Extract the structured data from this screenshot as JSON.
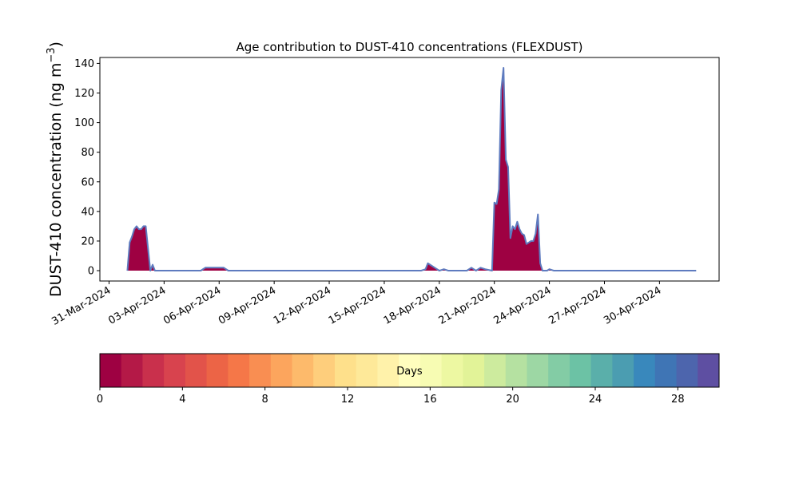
{
  "chart_data": {
    "type": "area",
    "title": "Age contribution to DUST-410 concentrations (FLEXDUST)",
    "xlabel": "",
    "ylabel_main": "DUST-410 concentration (ng m",
    "ylabel_sup": "−3",
    "ylabel_close": ")",
    "ylim": [
      -7,
      144
    ],
    "yticks": [
      0,
      20,
      40,
      60,
      80,
      100,
      120,
      140
    ],
    "xlim": [
      "2024-03-30T12:00",
      "2024-05-03T06:00"
    ],
    "xticks": [
      "2024-03-31",
      "2024-04-03",
      "2024-04-06",
      "2024-04-09",
      "2024-04-12",
      "2024-04-15",
      "2024-04-18",
      "2024-04-21",
      "2024-04-24",
      "2024-04-27",
      "2024-04-30"
    ],
    "xtick_labels": [
      "31-Mar-2024",
      "03-Apr-2024",
      "06-Apr-2024",
      "09-Apr-2024",
      "12-Apr-2024",
      "15-Apr-2024",
      "18-Apr-2024",
      "21-Apr-2024",
      "24-Apr-2024",
      "27-Apr-2024",
      "30-Apr-2024"
    ],
    "series": [
      {
        "fill_color": "#9e0142",
        "line_color": "#5e7bbf",
        "x": [
          "2024-04-01T00:00",
          "2024-04-01T03:00",
          "2024-04-01T06:00",
          "2024-04-01T09:00",
          "2024-04-01T12:00",
          "2024-04-01T15:00",
          "2024-04-01T18:00",
          "2024-04-01T21:00",
          "2024-04-02T00:00",
          "2024-04-02T03:00",
          "2024-04-02T06:00",
          "2024-04-02T09:00",
          "2024-04-02T12:00",
          "2024-04-03T00:00",
          "2024-04-05T00:00",
          "2024-04-05T06:00",
          "2024-04-05T12:00",
          "2024-04-06T00:00",
          "2024-04-06T06:00",
          "2024-04-06T12:00",
          "2024-04-07T00:00",
          "2024-04-17T00:00",
          "2024-04-17T06:00",
          "2024-04-17T09:00",
          "2024-04-17T12:00",
          "2024-04-17T18:00",
          "2024-04-18T00:00",
          "2024-04-18T06:00",
          "2024-04-18T12:00",
          "2024-04-19T12:00",
          "2024-04-19T18:00",
          "2024-04-20T00:00",
          "2024-04-20T06:00",
          "2024-04-20T12:00",
          "2024-04-20T21:00",
          "2024-04-21T00:00",
          "2024-04-21T03:00",
          "2024-04-21T06:00",
          "2024-04-21T09:00",
          "2024-04-21T12:00",
          "2024-04-21T15:00",
          "2024-04-21T18:00",
          "2024-04-21T21:00",
          "2024-04-22T00:00",
          "2024-04-22T03:00",
          "2024-04-22T06:00",
          "2024-04-22T09:00",
          "2024-04-22T12:00",
          "2024-04-22T15:00",
          "2024-04-22T18:00",
          "2024-04-22T21:00",
          "2024-04-23T00:00",
          "2024-04-23T03:00",
          "2024-04-23T06:00",
          "2024-04-23T09:00",
          "2024-04-23T12:00",
          "2024-04-23T15:00",
          "2024-04-23T18:00",
          "2024-04-23T21:00",
          "2024-04-24T00:00",
          "2024-04-24T06:00",
          "2024-04-24T12:00",
          "2024-04-25T00:00",
          "2024-05-02T00:00"
        ],
        "values": [
          0,
          19,
          23,
          28,
          30,
          28,
          28,
          30,
          30,
          15,
          0,
          4,
          0,
          0,
          0,
          2,
          2,
          2,
          2,
          0,
          0,
          0,
          1,
          5,
          4,
          2,
          0,
          1,
          0,
          0,
          2,
          0,
          2,
          1,
          0,
          46,
          45,
          55,
          122,
          137,
          75,
          70,
          22,
          30,
          28,
          33,
          28,
          25,
          24,
          18,
          19,
          20,
          20,
          25,
          38,
          5,
          0,
          0,
          0,
          1,
          0,
          0,
          0,
          0
        ]
      }
    ],
    "colorbar": {
      "label": "Days",
      "range": [
        0,
        30
      ],
      "ticks": [
        0,
        4,
        8,
        12,
        16,
        20,
        24,
        28
      ],
      "colors": [
        "#9e0142",
        "#b41947",
        "#c9304c",
        "#d8434e",
        "#e2534a",
        "#ec6446",
        "#f57748",
        "#f98e52",
        "#fca55d",
        "#fdba6b",
        "#fece7c",
        "#fee08b",
        "#fee999",
        "#fff2aa",
        "#fffebe",
        "#f7fcb3",
        "#edf8a2",
        "#e2f398",
        "#cdeb9e",
        "#b5e1a1",
        "#9dd7a4",
        "#83cca5",
        "#6cc2a5",
        "#5aafaa",
        "#4b9db1",
        "#3988bc",
        "#3f75b5",
        "#4d65ad",
        "#5e4fa2"
      ]
    }
  }
}
